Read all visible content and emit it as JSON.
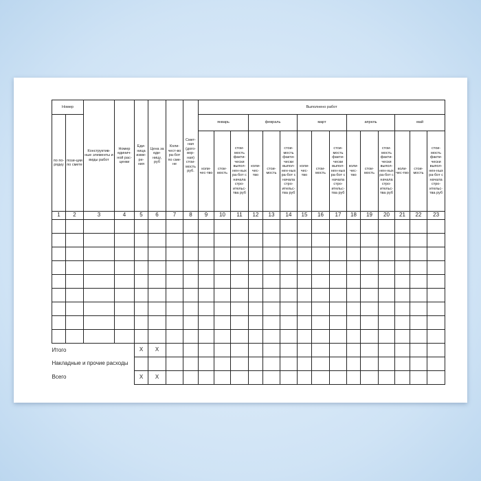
{
  "header": {
    "number_group": "Номер",
    "columns_left": [
      "по по-рядку",
      "пози-ции по смете",
      "Конструктив-ные элементы и виды работ",
      "Номер единич-ной рас-ценки",
      "Еди-ница изме-ре-ния",
      "Цена за еди-ницу, руб",
      "Коли-чест-во ра-бот по сме-не",
      "Смет-ная (дого-вор-ная) стои-мость руб."
    ],
    "done_group": "Выполнено работ",
    "months": [
      "январь",
      "февраль",
      "март",
      "апрель",
      "май"
    ],
    "sub_columns": [
      "коли-чес-тво",
      "стои-мость",
      "стои-мость факти-чески выпол-нен-ных ра-бот с начала стро-ительс-тва руб"
    ]
  },
  "column_numbers": [
    "1",
    "2",
    "3",
    "4",
    "5",
    "6",
    "7",
    "8",
    "9",
    "10",
    "11",
    "12",
    "13",
    "14",
    "15",
    "16",
    "17",
    "18",
    "19",
    "20",
    "21",
    "22",
    "23"
  ],
  "summary": [
    {
      "label": "Итого",
      "c5": "Х",
      "c6": "Х"
    },
    {
      "label": "Накладные и прочие расходы",
      "c5": "",
      "c6": ""
    },
    {
      "label": "Всего",
      "c5": "Х",
      "c6": "Х"
    }
  ]
}
